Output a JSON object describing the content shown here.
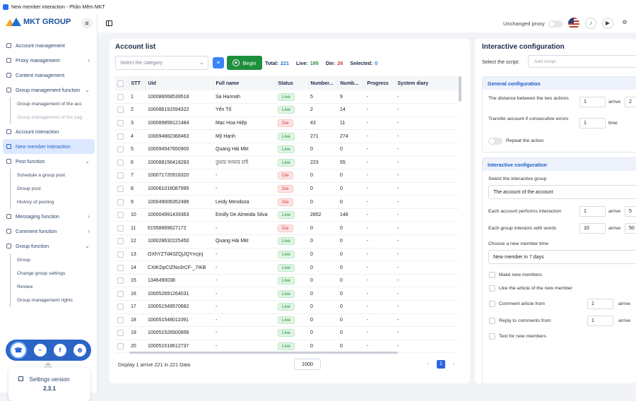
{
  "window": {
    "title": "New member interaction - Phần Mềm MKT"
  },
  "brand": {
    "name": "MKT GROUP"
  },
  "sidebar": {
    "items": [
      {
        "label": "Account management",
        "chevron": ""
      },
      {
        "label": "Proxy management",
        "chevron": "›"
      },
      {
        "label": "Content management",
        "chevron": ""
      },
      {
        "label": "Group management function",
        "chevron": "⌄"
      },
      {
        "label": "Group management of the acc",
        "sub": true
      },
      {
        "label": "Group management of the pag",
        "sub": true,
        "dim": true
      },
      {
        "label": "Account interaction",
        "chevron": ""
      },
      {
        "label": "New member interaction",
        "active": true
      },
      {
        "label": "Post function",
        "chevron": "⌄"
      },
      {
        "label": "Schedule a group post",
        "sub": true
      },
      {
        "label": "Group post",
        "sub": true
      },
      {
        "label": "History of posting",
        "sub": true
      },
      {
        "label": "Messaging function",
        "chevron": "›"
      },
      {
        "label": "Comment function",
        "chevron": "›"
      },
      {
        "label": "Group function",
        "chevron": "⌄"
      },
      {
        "label": "Group",
        "sub": true
      },
      {
        "label": "Change group settings",
        "sub": true
      },
      {
        "label": "Review",
        "sub": true
      },
      {
        "label": "Group management rights",
        "sub": true
      }
    ],
    "version_label": "Settings version",
    "version_number": "2.3.1"
  },
  "topbar": {
    "proxy_label": "Unchanged proxy"
  },
  "account_list": {
    "title": "Account list",
    "category_placeholder": "Select the category",
    "begin_label": "Begin",
    "total_label": "Total:",
    "total_value": "221",
    "live_label": "Live:",
    "live_value": "195",
    "die_label": "Die:",
    "die_value": "26",
    "selected_label": "Selected:",
    "selected_value": "0",
    "columns": [
      "STT",
      "Uid",
      "Full name",
      "Status",
      "Number...",
      "Numb...",
      "Progress",
      "System diary"
    ],
    "rows": [
      [
        "1",
        "100086068539518",
        "Sa Hannah",
        "Live",
        "5",
        "9",
        "-",
        "-"
      ],
      [
        "2",
        "100086191594322",
        "Yến Tố",
        "Live",
        "2",
        "14",
        "-",
        "-"
      ],
      [
        "3",
        "100089858121484",
        "Mạc Hoa Hiệp",
        "Die",
        "43",
        "11",
        "-",
        "-"
      ],
      [
        "4",
        "100094882368463",
        "Mỹ Hạnh",
        "Live",
        "271",
        "274",
        "-",
        "-"
      ],
      [
        "5",
        "100094547650900",
        "Quang Hải Mkt",
        "Live",
        "0",
        "0",
        "-",
        "-"
      ],
      [
        "6",
        "100088156418283",
        "তুমার আমার চাই",
        "Live",
        "223",
        "55",
        "-",
        "-"
      ],
      [
        "7",
        "100071720918320",
        "-",
        "Die",
        "0",
        "0",
        "-",
        "-"
      ],
      [
        "8",
        "100061016087995",
        "-",
        "Die",
        "0",
        "0",
        "-",
        "-"
      ],
      [
        "9",
        "100049006352486",
        "Leidy Mendoza",
        "Die",
        "0",
        "0",
        "-",
        "-"
      ],
      [
        "10",
        "100004991439363",
        "Emilly De Almeida Silva",
        "Live",
        "2852",
        "148",
        "-",
        "-"
      ],
      [
        "11",
        "61558669627172",
        "-",
        "Die",
        "0",
        "0",
        "-",
        "-"
      ],
      [
        "12",
        "100028632225450",
        "Quang Hải Mkt",
        "Live",
        "0",
        "0",
        "-",
        "-"
      ],
      [
        "13",
        "OXhYZTd43ZQjJQYncjnj",
        "-",
        "Live",
        "0",
        "0",
        "-",
        "-"
      ],
      [
        "14",
        "CXtKDpCtZNo3rCF-_7IKB",
        "-",
        "Live",
        "0",
        "0",
        "-",
        "-"
      ],
      [
        "15",
        "1346490038",
        "-",
        "Live",
        "0",
        "0",
        "-",
        "-"
      ],
      [
        "16",
        "100052691264031",
        "-",
        "Live",
        "0",
        "0",
        "-",
        "-"
      ],
      [
        "17",
        "100051549570682",
        "-",
        "Live",
        "0",
        "0",
        "-",
        "-"
      ],
      [
        "18",
        "100051548011091",
        "-",
        "Live",
        "0",
        "0",
        "-",
        "-"
      ],
      [
        "19",
        "100051526500856",
        "-",
        "Live",
        "0",
        "0",
        "-",
        "-"
      ],
      [
        "20",
        "100051518612737",
        "-",
        "Live",
        "0",
        "0",
        "-",
        "-"
      ]
    ],
    "footer_text": "Display 1 arrive 221 in 221 Data",
    "page_size": "1000",
    "current_page": "1"
  },
  "config": {
    "title": "Interactive configuration",
    "script_label": "Select the script:",
    "script_placeholder": "Add script",
    "general_header": "General configuration",
    "distance_label": "The distance between the two actions",
    "distance_from": "1",
    "distance_arrive": "arrive",
    "distance_to": "2",
    "transfer_label": "Transfer account if consecutive errors",
    "transfer_value": "1",
    "transfer_unit": "time",
    "repeat_label": "Repeat the action",
    "interactive_header": "Interactive configuration",
    "group_label": "Select the interactive group",
    "group_value": "The account of the account",
    "each_acc_label": "Each account performs interaction",
    "each_acc_from": "1",
    "each_acc_arrive": "arrive",
    "each_acc_to": "5",
    "each_group_label": "Each group interacts with words",
    "each_group_from": "10",
    "each_group_arrive": "arrive",
    "each_group_to": "50",
    "new_member_time_label": "Choose a new member time",
    "new_member_time_value": "New member in 7 days",
    "make_new_label": "Make new members",
    "like_article_label": "Like the article of the new member",
    "comment_label": "Comment article from",
    "comment_from": "1",
    "comment_arrive": "arrive",
    "reply_label": "Reply to comments from",
    "reply_from": "1",
    "reply_arrive": "arrive",
    "text_label": "Text for new members"
  }
}
